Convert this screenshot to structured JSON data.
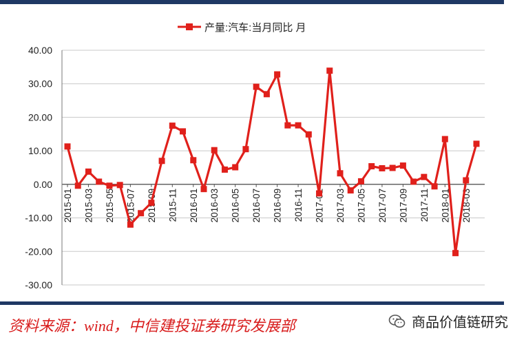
{
  "chart_data": {
    "type": "line",
    "legend": "产量:汽车:当月同比 月",
    "legend_position": "top-center",
    "grid": true,
    "ylim": [
      -30,
      40
    ],
    "y_ticks": [
      "40.00",
      "30.00",
      "20.00",
      "10.00",
      "0.00",
      "-10.00",
      "-20.00",
      "-30.00"
    ],
    "x_tick_labels": [
      "2015-01",
      "2015-03",
      "2015-05",
      "2015-07",
      "2015-09",
      "2015-11",
      "2016-01",
      "2016-03",
      "2016-05",
      "2016-07",
      "2016-09",
      "2016-11",
      "2017-01",
      "2017-03",
      "2017-05",
      "2017-07",
      "2017-09",
      "2017-11",
      "2018-01",
      "2018-03"
    ],
    "series": [
      {
        "name": "产量:汽车:当月同比 月",
        "color": "#e0201b",
        "points": [
          [
            "2015-01",
            11.3
          ],
          [
            "2015-02",
            -0.4
          ],
          [
            "2015-03",
            3.8
          ],
          [
            "2015-04",
            0.8
          ],
          [
            "2015-05",
            -0.4
          ],
          [
            "2015-06",
            -0.2
          ],
          [
            "2015-07",
            -12.0
          ],
          [
            "2015-08",
            -8.6
          ],
          [
            "2015-09",
            -5.5
          ],
          [
            "2015-10",
            7.0
          ],
          [
            "2015-11",
            17.5
          ],
          [
            "2015-12",
            15.8
          ],
          [
            "2016-01",
            7.2
          ],
          [
            "2016-02",
            -1.4
          ],
          [
            "2016-03",
            10.2
          ],
          [
            "2016-04",
            4.4
          ],
          [
            "2016-05",
            5.1
          ],
          [
            "2016-06",
            10.5
          ],
          [
            "2016-07",
            29.1
          ],
          [
            "2016-08",
            26.9
          ],
          [
            "2016-09",
            32.8
          ],
          [
            "2016-10",
            17.6
          ],
          [
            "2016-11",
            17.6
          ],
          [
            "2016-12",
            14.9
          ],
          [
            "2017-01",
            -2.7
          ],
          [
            "2017-02",
            33.9
          ],
          [
            "2017-03",
            3.3
          ],
          [
            "2017-04",
            -1.8
          ],
          [
            "2017-05",
            0.9
          ],
          [
            "2017-06",
            5.4
          ],
          [
            "2017-07",
            4.8
          ],
          [
            "2017-08",
            4.9
          ],
          [
            "2017-09",
            5.6
          ],
          [
            "2017-10",
            0.8
          ],
          [
            "2017-11",
            2.2
          ],
          [
            "2017-12",
            -0.6
          ],
          [
            "2018-01",
            13.5
          ],
          [
            "2018-02",
            -20.5
          ],
          [
            "2018-03",
            1.2
          ],
          [
            "2018-04",
            12.1
          ]
        ]
      }
    ]
  },
  "footer": {
    "source": "资料来源：wind，中信建投证券研究发展部",
    "watermark": "商品价值链研究",
    "watermark_icon": "wechat-icon"
  }
}
